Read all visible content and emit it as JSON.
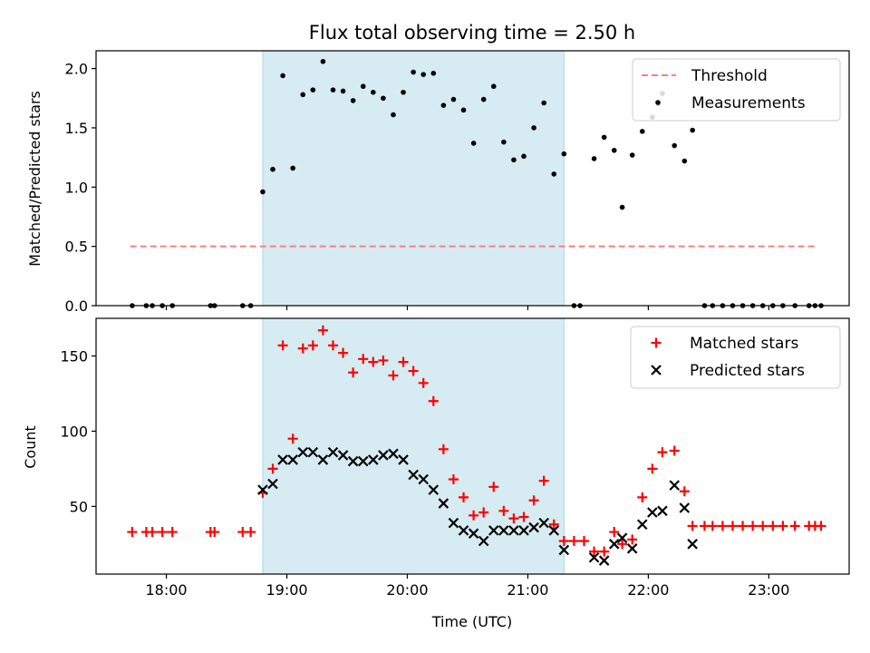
{
  "chart_data": [
    {
      "type": "scatter",
      "title": "Flux total observing time = 2.50 h",
      "ylabel": "Matched/Predicted stars",
      "ylim": [
        0,
        2.15
      ],
      "yticks": [
        0.0,
        0.5,
        1.0,
        1.5,
        2.0
      ],
      "ytick_labels": [
        "0.0",
        "0.5",
        "1.0",
        "1.5",
        "2.0"
      ],
      "xlim": [
        "17:25",
        "23:40"
      ],
      "xticks": [
        "18:00",
        "19:00",
        "20:00",
        "21:00",
        "22:00",
        "23:00"
      ],
      "shaded_span": [
        "18:48",
        "21:18"
      ],
      "shaded_color": "#add8e6",
      "legend": "top-right",
      "threshold": {
        "name": "Threshold",
        "value": 0.5,
        "x_range": [
          "17:42",
          "23:24"
        ],
        "color": "#ff7f7f",
        "style": "dashed"
      },
      "series": [
        {
          "name": "Measurements",
          "color": "#000000",
          "marker": "dot",
          "points": [
            [
              "17:43",
              0.0
            ],
            [
              "17:50",
              0.0
            ],
            [
              "17:53",
              0.0
            ],
            [
              "17:58",
              0.0
            ],
            [
              "18:03",
              0.0
            ],
            [
              "18:22",
              0.0
            ],
            [
              "18:24",
              0.0
            ],
            [
              "18:38",
              0.0
            ],
            [
              "18:42",
              0.0
            ],
            [
              "18:48",
              0.96
            ],
            [
              "18:53",
              1.15
            ],
            [
              "18:58",
              1.94
            ],
            [
              "19:03",
              1.16
            ],
            [
              "19:08",
              1.78
            ],
            [
              "19:13",
              1.82
            ],
            [
              "19:18",
              2.06
            ],
            [
              "19:23",
              1.82
            ],
            [
              "19:28",
              1.81
            ],
            [
              "19:33",
              1.73
            ],
            [
              "19:38",
              1.85
            ],
            [
              "19:43",
              1.8
            ],
            [
              "19:48",
              1.75
            ],
            [
              "19:53",
              1.61
            ],
            [
              "19:58",
              1.8
            ],
            [
              "20:03",
              1.97
            ],
            [
              "20:08",
              1.95
            ],
            [
              "20:13",
              1.96
            ],
            [
              "20:18",
              1.69
            ],
            [
              "20:23",
              1.74
            ],
            [
              "20:28",
              1.65
            ],
            [
              "20:33",
              1.37
            ],
            [
              "20:38",
              1.74
            ],
            [
              "20:43",
              1.85
            ],
            [
              "20:48",
              1.38
            ],
            [
              "20:53",
              1.23
            ],
            [
              "20:58",
              1.26
            ],
            [
              "21:03",
              1.5
            ],
            [
              "21:08",
              1.71
            ],
            [
              "21:13",
              1.11
            ],
            [
              "21:18",
              1.28
            ],
            [
              "21:23",
              0.0
            ],
            [
              "21:26",
              0.0
            ],
            [
              "21:33",
              1.24
            ],
            [
              "21:38",
              1.42
            ],
            [
              "21:43",
              1.31
            ],
            [
              "21:47",
              0.83
            ],
            [
              "21:52",
              1.27
            ],
            [
              "21:57",
              1.47
            ],
            [
              "22:02",
              1.59
            ],
            [
              "22:05",
              1.7
            ],
            [
              "22:07",
              1.79
            ],
            [
              "22:13",
              1.35
            ],
            [
              "22:18",
              1.22
            ],
            [
              "22:22",
              1.48
            ],
            [
              "22:28",
              0.0
            ],
            [
              "22:32",
              0.0
            ],
            [
              "22:37",
              0.0
            ],
            [
              "22:42",
              0.0
            ],
            [
              "22:47",
              0.0
            ],
            [
              "22:52",
              0.0
            ],
            [
              "22:57",
              0.0
            ],
            [
              "23:02",
              0.0
            ],
            [
              "23:07",
              0.0
            ],
            [
              "23:13",
              0.0
            ],
            [
              "23:20",
              0.0
            ],
            [
              "23:23",
              0.0
            ],
            [
              "23:26",
              0.0
            ]
          ]
        }
      ]
    },
    {
      "type": "scatter",
      "xlabel": "Time (UTC)",
      "ylabel": "Count",
      "ylim": [
        5,
        175
      ],
      "yticks": [
        50,
        100,
        150
      ],
      "ytick_labels": [
        "50",
        "100",
        "150"
      ],
      "xlim": [
        "17:25",
        "23:40"
      ],
      "xticks": [
        "18:00",
        "19:00",
        "20:00",
        "21:00",
        "22:00",
        "23:00"
      ],
      "xtick_labels": [
        "18:00",
        "19:00",
        "20:00",
        "21:00",
        "22:00",
        "23:00"
      ],
      "shaded_span": [
        "18:48",
        "21:18"
      ],
      "shaded_color": "#add8e6",
      "legend": "top-right",
      "series": [
        {
          "name": "Matched stars",
          "color": "#ff0000",
          "marker": "plus",
          "points": [
            [
              "17:43",
              33
            ],
            [
              "17:50",
              33
            ],
            [
              "17:53",
              33
            ],
            [
              "17:58",
              33
            ],
            [
              "18:03",
              33
            ],
            [
              "18:22",
              33
            ],
            [
              "18:24",
              33
            ],
            [
              "18:38",
              33
            ],
            [
              "18:42",
              33
            ],
            [
              "18:48",
              59
            ],
            [
              "18:53",
              75
            ],
            [
              "18:58",
              157
            ],
            [
              "19:03",
              95
            ],
            [
              "19:08",
              155
            ],
            [
              "19:13",
              157
            ],
            [
              "19:18",
              167
            ],
            [
              "19:23",
              157
            ],
            [
              "19:28",
              152
            ],
            [
              "19:33",
              139
            ],
            [
              "19:38",
              148
            ],
            [
              "19:43",
              146
            ],
            [
              "19:48",
              147
            ],
            [
              "19:53",
              137
            ],
            [
              "19:58",
              146
            ],
            [
              "20:03",
              140
            ],
            [
              "20:08",
              132
            ],
            [
              "20:13",
              120
            ],
            [
              "20:18",
              88
            ],
            [
              "20:23",
              68
            ],
            [
              "20:28",
              56
            ],
            [
              "20:33",
              44
            ],
            [
              "20:38",
              46
            ],
            [
              "20:43",
              63
            ],
            [
              "20:48",
              47
            ],
            [
              "20:53",
              42
            ],
            [
              "20:58",
              43
            ],
            [
              "21:03",
              54
            ],
            [
              "21:08",
              67
            ],
            [
              "21:13",
              38
            ],
            [
              "21:18",
              27
            ],
            [
              "21:23",
              27
            ],
            [
              "21:28",
              27
            ],
            [
              "21:33",
              20
            ],
            [
              "21:38",
              20
            ],
            [
              "21:43",
              33
            ],
            [
              "21:47",
              25
            ],
            [
              "21:52",
              28
            ],
            [
              "21:57",
              56
            ],
            [
              "22:02",
              75
            ],
            [
              "22:07",
              86
            ],
            [
              "22:13",
              87
            ],
            [
              "22:18",
              60
            ],
            [
              "22:22",
              37
            ],
            [
              "22:28",
              37
            ],
            [
              "22:32",
              37
            ],
            [
              "22:37",
              37
            ],
            [
              "22:42",
              37
            ],
            [
              "22:47",
              37
            ],
            [
              "22:52",
              37
            ],
            [
              "22:57",
              37
            ],
            [
              "23:02",
              37
            ],
            [
              "23:07",
              37
            ],
            [
              "23:13",
              37
            ],
            [
              "23:20",
              37
            ],
            [
              "23:23",
              37
            ],
            [
              "23:26",
              37
            ]
          ]
        },
        {
          "name": "Predicted stars",
          "color": "#000000",
          "marker": "x",
          "points": [
            [
              "18:48",
              61
            ],
            [
              "18:53",
              65
            ],
            [
              "18:58",
              81
            ],
            [
              "19:03",
              81
            ],
            [
              "19:08",
              86
            ],
            [
              "19:13",
              86
            ],
            [
              "19:18",
              81
            ],
            [
              "19:23",
              86
            ],
            [
              "19:28",
              84
            ],
            [
              "19:33",
              80
            ],
            [
              "19:38",
              80
            ],
            [
              "19:43",
              81
            ],
            [
              "19:48",
              84
            ],
            [
              "19:53",
              85
            ],
            [
              "19:58",
              81
            ],
            [
              "20:03",
              71
            ],
            [
              "20:08",
              68
            ],
            [
              "20:13",
              61
            ],
            [
              "20:18",
              52
            ],
            [
              "20:23",
              39
            ],
            [
              "20:28",
              34
            ],
            [
              "20:33",
              32
            ],
            [
              "20:38",
              27
            ],
            [
              "20:43",
              34
            ],
            [
              "20:48",
              34
            ],
            [
              "20:53",
              34
            ],
            [
              "20:58",
              34
            ],
            [
              "21:03",
              36
            ],
            [
              "21:08",
              39
            ],
            [
              "21:13",
              34
            ],
            [
              "21:18",
              21
            ],
            [
              "21:33",
              16
            ],
            [
              "21:38",
              14
            ],
            [
              "21:43",
              25
            ],
            [
              "21:47",
              29
            ],
            [
              "21:52",
              22
            ],
            [
              "21:57",
              38
            ],
            [
              "22:02",
              46
            ],
            [
              "22:07",
              47
            ],
            [
              "22:13",
              64
            ],
            [
              "22:18",
              49
            ],
            [
              "22:22",
              25
            ]
          ]
        }
      ]
    }
  ]
}
